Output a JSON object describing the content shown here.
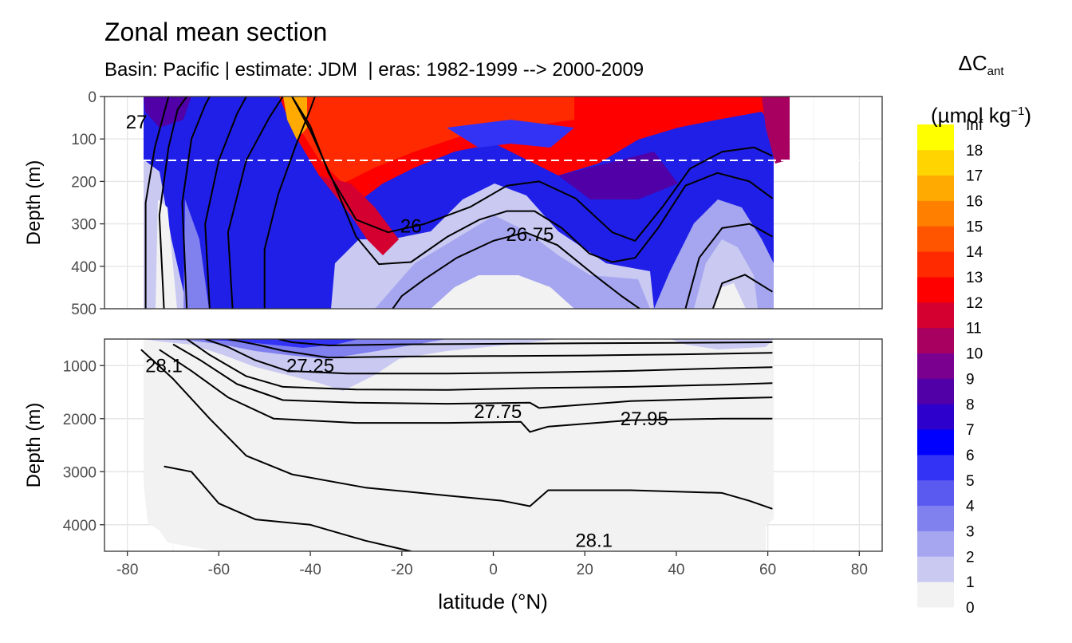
{
  "chart_data": {
    "type": "heatmap",
    "title": "Zonal mean section",
    "subtitle": "Basin: Pacific | estimate: JDM  | eras: 1982-1999 --> 2000-2009",
    "xlabel": "latitude (°N)",
    "ylabel": "Depth (m)",
    "x_ticks": [
      "-80",
      "-60",
      "-40",
      "-20",
      "0",
      "20",
      "40",
      "60",
      "80"
    ],
    "xlim": [
      -85,
      85
    ],
    "panels": [
      {
        "name": "upper",
        "ylim": [
          0,
          500
        ],
        "y_ticks": [
          "0",
          "100",
          "200",
          "300",
          "400",
          "500"
        ]
      },
      {
        "name": "lower",
        "ylim": [
          500,
          4500
        ],
        "y_ticks": [
          "1000",
          "2000",
          "3000",
          "4000"
        ]
      }
    ],
    "reference_line_depth": 150,
    "legend": {
      "title_main": "ΔC",
      "title_sub": "ant",
      "unit_main": "(µmol kg",
      "unit_sup": "−1",
      "unit_end": ")",
      "labels": [
        "Inf",
        "18",
        "17",
        "16",
        "15",
        "14",
        "13",
        "12",
        "11",
        "10",
        "9",
        "8",
        "7",
        "6",
        "5",
        "4",
        "3",
        "2",
        "1",
        "0"
      ],
      "colors": [
        "#f2f2f2",
        "#c9c9f2",
        "#a6a6f0",
        "#8080ee",
        "#5a5af0",
        "#3333f5",
        "#0000ff",
        "#2d00cc",
        "#5000a6",
        "#7a0090",
        "#a80060",
        "#d40030",
        "#ff0000",
        "#ff2a00",
        "#ff5500",
        "#ff7f00",
        "#ffaa00",
        "#ffd400",
        "#ffff00"
      ]
    },
    "contour_labels": [
      {
        "text": "26",
        "panel": "upper",
        "lat": -18,
        "depth": 305
      },
      {
        "text": "26.75",
        "panel": "upper",
        "lat": 8,
        "depth": 325
      },
      {
        "text": "27",
        "panel": "upper",
        "lat": -78,
        "depth": 60
      },
      {
        "text": "28.1",
        "panel": "lower",
        "lat": -72,
        "depth": 1000
      },
      {
        "text": "27.25",
        "panel": "lower",
        "lat": -40,
        "depth": 1000
      },
      {
        "text": "27.75",
        "panel": "lower",
        "lat": 1,
        "depth": 1870
      },
      {
        "text": "27.95",
        "panel": "lower",
        "lat": 33,
        "depth": 2000
      },
      {
        "text": "28.1",
        "panel": "lower",
        "lat": 22,
        "depth": 4300
      }
    ],
    "isopycnals_upper": [
      [
        [
          -76,
          500
        ],
        [
          -76,
          250
        ],
        [
          -74,
          120
        ],
        [
          -72,
          40
        ],
        [
          -71,
          0
        ]
      ],
      [
        [
          -72,
          500
        ],
        [
          -73,
          280
        ],
        [
          -71,
          120
        ],
        [
          -69,
          30
        ],
        [
          -67,
          0
        ]
      ],
      [
        [
          -67,
          500
        ],
        [
          -68,
          250
        ],
        [
          -66,
          100
        ],
        [
          -63,
          20
        ],
        [
          -62,
          0
        ]
      ],
      [
        [
          -62,
          500
        ],
        [
          -63,
          300
        ],
        [
          -60,
          150
        ],
        [
          -56,
          40
        ],
        [
          -54,
          0
        ]
      ],
      [
        [
          -57,
          500
        ],
        [
          -58,
          320
        ],
        [
          -54,
          150
        ],
        [
          -49,
          50
        ],
        [
          -46,
          0
        ]
      ],
      [
        [
          -50,
          500
        ],
        [
          -50,
          360
        ],
        [
          -47,
          230
        ],
        [
          -43,
          110
        ],
        [
          -40,
          30
        ],
        [
          -39,
          0
        ]
      ],
      [
        [
          -44,
          0
        ],
        [
          -40,
          70
        ],
        [
          -36,
          180
        ],
        [
          -30,
          290
        ],
        [
          -23,
          320
        ],
        [
          -15,
          300
        ],
        [
          -5,
          260
        ],
        [
          3,
          210
        ],
        [
          10,
          200
        ],
        [
          18,
          240
        ],
        [
          26,
          320
        ],
        [
          31,
          340
        ],
        [
          37,
          260
        ],
        [
          43,
          170
        ],
        [
          50,
          130
        ],
        [
          57,
          120
        ],
        [
          61,
          140
        ]
      ],
      [
        [
          -44,
          0
        ],
        [
          -40,
          80
        ],
        [
          -35,
          200
        ],
        [
          -30,
          330
        ],
        [
          -25,
          395
        ],
        [
          -18,
          390
        ],
        [
          -10,
          330
        ],
        [
          -3,
          290
        ],
        [
          3,
          270
        ],
        [
          9,
          270
        ],
        [
          15,
          310
        ],
        [
          21,
          370
        ],
        [
          26,
          390
        ],
        [
          31,
          380
        ],
        [
          36,
          310
        ],
        [
          42,
          210
        ],
        [
          49,
          180
        ],
        [
          56,
          200
        ],
        [
          61,
          240
        ]
      ],
      [
        [
          -22,
          500
        ],
        [
          -20,
          470
        ],
        [
          -15,
          430
        ],
        [
          -8,
          380
        ],
        [
          0,
          340
        ],
        [
          7,
          320
        ],
        [
          14,
          350
        ],
        [
          22,
          420
        ],
        [
          28,
          470
        ],
        [
          32,
          500
        ]
      ],
      [
        [
          42,
          500
        ],
        [
          45,
          380
        ],
        [
          50,
          310
        ],
        [
          56,
          300
        ],
        [
          61,
          330
        ]
      ],
      [
        [
          48,
          500
        ],
        [
          50,
          440
        ],
        [
          55,
          420
        ],
        [
          61,
          460
        ]
      ]
    ],
    "isopycnals_lower": [
      [
        [
          -47,
          500
        ],
        [
          -44,
          560
        ],
        [
          -36,
          620
        ],
        [
          -20,
          600
        ],
        [
          0,
          590
        ],
        [
          20,
          580
        ],
        [
          40,
          570
        ],
        [
          61,
          560
        ]
      ],
      [
        [
          -58,
          500
        ],
        [
          -52,
          600
        ],
        [
          -46,
          720
        ],
        [
          -36,
          850
        ],
        [
          -20,
          830
        ],
        [
          0,
          820
        ],
        [
          20,
          810
        ],
        [
          40,
          790
        ],
        [
          61,
          760
        ]
      ],
      [
        [
          -63,
          500
        ],
        [
          -58,
          650
        ],
        [
          -52,
          900
        ],
        [
          -45,
          1100
        ],
        [
          -32,
          1150
        ],
        [
          -10,
          1150
        ],
        [
          10,
          1130
        ],
        [
          30,
          1100
        ],
        [
          50,
          1050
        ],
        [
          61,
          1030
        ]
      ],
      [
        [
          -67,
          500
        ],
        [
          -62,
          800
        ],
        [
          -54,
          1200
        ],
        [
          -46,
          1400
        ],
        [
          -30,
          1450
        ],
        [
          -10,
          1460
        ],
        [
          10,
          1420
        ],
        [
          30,
          1400
        ],
        [
          50,
          1360
        ],
        [
          61,
          1330
        ]
      ],
      [
        [
          -70,
          600
        ],
        [
          -64,
          900
        ],
        [
          -56,
          1350
        ],
        [
          -46,
          1650
        ],
        [
          -30,
          1700
        ],
        [
          -10,
          1720
        ],
        [
          8,
          1700
        ],
        [
          10,
          1800
        ],
        [
          30,
          1670
        ],
        [
          50,
          1620
        ],
        [
          61,
          1600
        ]
      ],
      [
        [
          -73,
          700
        ],
        [
          -66,
          1100
        ],
        [
          -58,
          1600
        ],
        [
          -48,
          2000
        ],
        [
          -30,
          2080
        ],
        [
          -10,
          2080
        ],
        [
          6,
          2060
        ],
        [
          8,
          2250
        ],
        [
          12,
          2150
        ],
        [
          30,
          2030
        ],
        [
          50,
          2000
        ],
        [
          61,
          2000
        ]
      ],
      [
        [
          -77,
          700
        ],
        [
          -70,
          1250
        ],
        [
          -62,
          2000
        ],
        [
          -54,
          2700
        ],
        [
          -44,
          3050
        ],
        [
          -28,
          3300
        ],
        [
          -10,
          3450
        ],
        [
          2,
          3550
        ],
        [
          8,
          3650
        ],
        [
          12,
          3350
        ],
        [
          30,
          3350
        ],
        [
          50,
          3400
        ],
        [
          56,
          3550
        ],
        [
          61,
          3700
        ]
      ],
      [
        [
          -72,
          2900
        ],
        [
          -66,
          3000
        ],
        [
          -60,
          3600
        ],
        [
          -52,
          3900
        ],
        [
          -40,
          4000
        ],
        [
          -28,
          4300
        ],
        [
          -18,
          4500
        ]
      ]
    ]
  }
}
